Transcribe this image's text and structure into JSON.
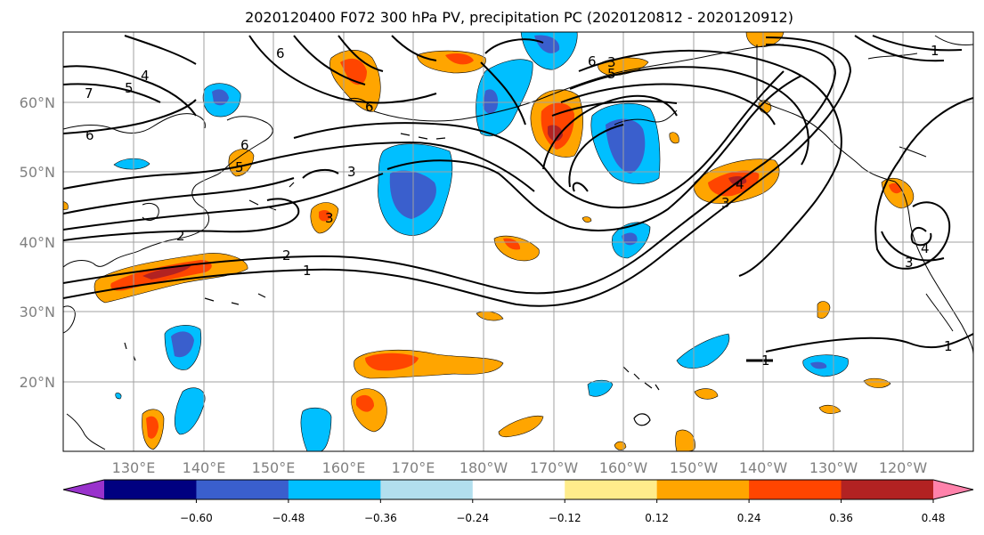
{
  "figure": {
    "title": "2020120400 F072 300 hPa PV, precipitation PC (2020120812 - 2020120912)"
  },
  "map": {
    "lat_range": [
      10,
      70
    ],
    "lon_range_east": [
      120,
      250
    ],
    "lat_ticks": [
      "20°N",
      "30°N",
      "40°N",
      "50°N",
      "60°N"
    ],
    "lon_ticks": [
      "130°E",
      "140°E",
      "150°E",
      "160°E",
      "170°E",
      "180°W",
      "170°W",
      "160°W",
      "150°W",
      "140°W",
      "130°W",
      "120°W"
    ],
    "grid": true,
    "pv_contour_labels": [
      "6",
      "7",
      "5",
      "4",
      "6",
      "3",
      "2",
      "2",
      "1",
      "6",
      "6",
      "5",
      "3",
      "3",
      "6",
      "5",
      "3",
      "4",
      "1",
      "1",
      "1",
      "3",
      "4"
    ]
  },
  "colorbar": {
    "tick_labels": [
      "−0.60",
      "−0.48",
      "−0.36",
      "−0.24",
      "−0.12",
      "0.12",
      "0.24",
      "0.36",
      "0.48",
      "0.60"
    ],
    "colors": [
      "#9932cc",
      "#000080",
      "#3a5fcd",
      "#00bfff",
      "#b2dfee",
      "#ffffff",
      "#ffec8b",
      "#ffa500",
      "#ff4500",
      "#b22222",
      "#ff82ab"
    ],
    "extend": "both"
  },
  "chart_data": {
    "type": "heatmap",
    "title": "2020120400 F072 300 hPa PV, precipitation PC (2020120812 - 2020120912)",
    "colorbar_levels": [
      -0.6,
      -0.48,
      -0.36,
      -0.24,
      -0.12,
      0.12,
      0.24,
      0.36,
      0.48,
      0.6
    ],
    "pv_contour_levels": [
      1,
      2,
      3,
      4,
      5,
      6,
      7
    ],
    "xlim": [
      120,
      250
    ],
    "ylim": [
      10,
      70
    ],
    "xlabel": "",
    "ylabel": ""
  }
}
